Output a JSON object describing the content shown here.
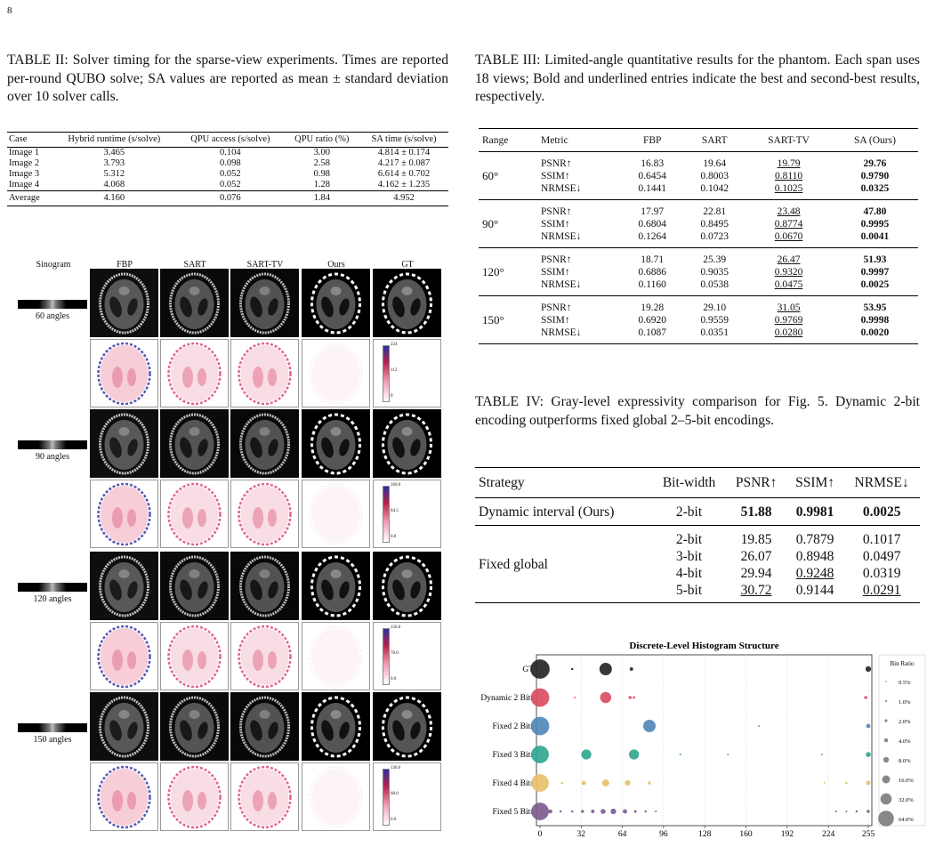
{
  "page_number": "8",
  "table2": {
    "caption": "TABLE II: Solver timing for the sparse-view experiments. Times are reported per-round QUBO solve; SA values are reported as mean ± standard deviation over 10 solver calls.",
    "headers": [
      "Case",
      "Hybrid runtime (s/solve)",
      "QPU access (s/solve)",
      "QPU ratio (%)",
      "SA time (s/solve)"
    ],
    "rows": [
      [
        "Image 1",
        "3.465",
        "0.104",
        "3.00",
        "4.814 ± 0.174"
      ],
      [
        "Image 2",
        "3.793",
        "0.098",
        "2.58",
        "4.217 ± 0.087"
      ],
      [
        "Image 3",
        "5.312",
        "0.052",
        "0.98",
        "6.614 ± 0.702"
      ],
      [
        "Image 4",
        "4.068",
        "0.052",
        "1.28",
        "4.162 ± 1.235"
      ]
    ],
    "average": [
      "Average",
      "4.160",
      "0.076",
      "1.84",
      "4.952"
    ]
  },
  "table3": {
    "caption": "TABLE III: Limited-angle quantitative results for the phantom. Each span uses 18 views; Bold and underlined entries indicate the best and second-best results, respectively.",
    "headers": [
      "Range",
      "Metric",
      "FBP",
      "SART",
      "SART-TV",
      "SA (Ours)"
    ],
    "groups": [
      {
        "range": "60°",
        "rows": [
          [
            "PSNR↑",
            "16.83",
            "19.64",
            "19.79",
            "29.76"
          ],
          [
            "SSIM↑",
            "0.6454",
            "0.8003",
            "0.8110",
            "0.9790"
          ],
          [
            "NRMSE↓",
            "0.1441",
            "0.1042",
            "0.1025",
            "0.0325"
          ]
        ]
      },
      {
        "range": "90°",
        "rows": [
          [
            "PSNR↑",
            "17.97",
            "22.81",
            "23.48",
            "47.80"
          ],
          [
            "SSIM↑",
            "0.6804",
            "0.8495",
            "0.8774",
            "0.9995"
          ],
          [
            "NRMSE↓",
            "0.1264",
            "0.0723",
            "0.0670",
            "0.0041"
          ]
        ]
      },
      {
        "range": "120°",
        "rows": [
          [
            "PSNR↑",
            "18.71",
            "25.39",
            "26.47",
            "51.93"
          ],
          [
            "SSIM↑",
            "0.6886",
            "0.9035",
            "0.9320",
            "0.9997"
          ],
          [
            "NRMSE↓",
            "0.1160",
            "0.0538",
            "0.0475",
            "0.0025"
          ]
        ]
      },
      {
        "range": "150°",
        "rows": [
          [
            "PSNR↑",
            "19.28",
            "29.10",
            "31.05",
            "53.95"
          ],
          [
            "SSIM↑",
            "0.6920",
            "0.9559",
            "0.9769",
            "0.9998"
          ],
          [
            "NRMSE↓",
            "0.1087",
            "0.0351",
            "0.0280",
            "0.0020"
          ]
        ]
      }
    ]
  },
  "table4": {
    "caption": "TABLE IV: Gray-level expressivity comparison for Fig. 5. Dynamic 2-bit encoding outperforms fixed global 2–5-bit encodings.",
    "headers": [
      "Strategy",
      "Bit-width",
      "PSNR↑",
      "SSIM↑",
      "NRMSE↓"
    ],
    "dynamic": [
      "Dynamic interval (Ours)",
      "2-bit",
      "51.88",
      "0.9981",
      "0.0025"
    ],
    "fixed_label": "Fixed global",
    "fixed": [
      [
        "2-bit",
        "19.85",
        "0.7879",
        "0.1017"
      ],
      [
        "3-bit",
        "26.07",
        "0.8948",
        "0.0497"
      ],
      [
        "4-bit",
        "29.94",
        "0.9248",
        "0.0319"
      ],
      [
        "5-bit",
        "30.72",
        "0.9144",
        "0.0291"
      ]
    ]
  },
  "figure": {
    "col_headers": [
      "Sinogram",
      "FBP",
      "SART",
      "SART-TV",
      "Ours",
      "GT"
    ],
    "row_labels": [
      "60 angles",
      "90 angles",
      "120 angles",
      "150 angles"
    ],
    "colorbar_ticks": [
      [
        "224",
        "112",
        "0"
      ],
      [
        "169.0",
        "84.5",
        "0.0"
      ],
      [
        "156.0",
        "78.0",
        "0.0"
      ],
      [
        "136.0",
        "68.0",
        "0.0"
      ]
    ]
  },
  "chart_data": {
    "type": "scatter",
    "title": "Discrete-Level Histogram Structure",
    "categories": [
      "GT",
      "Dynamic 2 Bits",
      "Fixed 2 Bits",
      "Fixed 3 Bits",
      "Fixed 4 Bits",
      "Fixed 5 Bits"
    ],
    "xticks": [
      "0",
      "32",
      "64",
      "96",
      "128",
      "160",
      "192",
      "224",
      "255"
    ],
    "xlim": [
      0,
      255
    ],
    "legend_title": "Bin Ratio",
    "legend": [
      "0.5%",
      "1.0%",
      "2.0%",
      "4.0%",
      "8.0%",
      "16.0%",
      "32.0%",
      "64.0%"
    ],
    "legend_placement": "right",
    "series": [
      {
        "category": "GT",
        "color": "#222222",
        "points": [
          [
            0,
            60
          ],
          [
            25,
            0.8
          ],
          [
            51,
            25
          ],
          [
            71,
            2
          ],
          [
            255,
            5
          ]
        ]
      },
      {
        "category": "Dynamic 2 Bits",
        "color": "#d9485f",
        "points": [
          [
            0,
            55
          ],
          [
            27,
            0.5
          ],
          [
            51,
            20
          ],
          [
            70,
            1.5
          ],
          [
            73,
            1
          ],
          [
            253,
            1.5
          ]
        ]
      },
      {
        "category": "Fixed 2 Bits",
        "color": "#4f86b8",
        "points": [
          [
            0,
            55
          ],
          [
            85,
            25
          ],
          [
            170,
            0.5
          ],
          [
            255,
            3
          ]
        ]
      },
      {
        "category": "Fixed 3 Bits",
        "color": "#2fa58e",
        "points": [
          [
            0,
            50
          ],
          [
            36,
            16
          ],
          [
            73,
            16
          ],
          [
            109,
            0.5
          ],
          [
            146,
            0.5
          ],
          [
            219,
            0.5
          ],
          [
            255,
            4
          ]
        ]
      },
      {
        "category": "Fixed 4 Bits",
        "color": "#e8c06a",
        "points": [
          [
            0,
            50
          ],
          [
            17,
            0.8
          ],
          [
            34,
            3
          ],
          [
            51,
            8
          ],
          [
            68,
            5
          ],
          [
            85,
            1.5
          ],
          [
            221,
            0.5
          ],
          [
            238,
            0.8
          ],
          [
            255,
            3
          ]
        ]
      },
      {
        "category": "Fixed 5 Bits",
        "color": "#7b5a8e",
        "points": [
          [
            0,
            50
          ],
          [
            8,
            2.5
          ],
          [
            16,
            0.8
          ],
          [
            25,
            0.8
          ],
          [
            33,
            1.5
          ],
          [
            41,
            2
          ],
          [
            49,
            4
          ],
          [
            57,
            5
          ],
          [
            66,
            3
          ],
          [
            74,
            1.2
          ],
          [
            82,
            0.8
          ],
          [
            90,
            0.5
          ],
          [
            230,
            0.5
          ],
          [
            238,
            0.5
          ],
          [
            246,
            0.8
          ],
          [
            255,
            1.5
          ]
        ]
      }
    ]
  }
}
